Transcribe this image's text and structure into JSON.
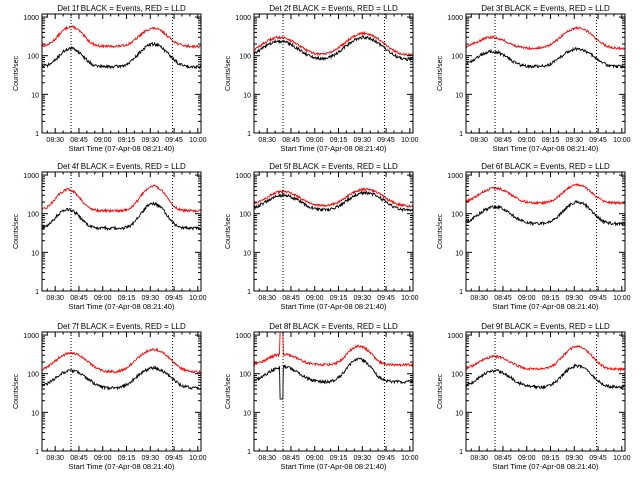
{
  "chart_data": {
    "type": "line",
    "grid": false,
    "ylabel": "Counts/sec",
    "xlabel": "Start Time (07-Apr-08 08:21:40)",
    "x_tick_labels": [
      "08:30",
      "08:45",
      "09:00",
      "09:15",
      "09:30",
      "09:45",
      "10:00"
    ],
    "x_tick_minutes": [
      30,
      45,
      60,
      75,
      90,
      105,
      120
    ],
    "x_range_minutes": [
      21.67,
      122
    ],
    "y_scale": "log",
    "y_range": [
      1,
      1200
    ],
    "y_tick_labels": [
      "1",
      "10",
      "100",
      "1000"
    ],
    "y_tick_values": [
      1,
      10,
      100,
      1000
    ],
    "vlines_minutes": [
      40,
      104
    ],
    "series_colors": {
      "events": "#000000",
      "lld": "#ff0000"
    },
    "panels": [
      {
        "title": "Det 1f BLACK = Events, RED = LLD",
        "lld": {
          "base": 175,
          "peaks": [
            [
              40,
              560,
              6
            ],
            [
              92,
              510,
              7
            ]
          ]
        },
        "events": {
          "base": 52,
          "peaks": [
            [
              40,
              155,
              6
            ],
            [
              92,
              200,
              7
            ]
          ]
        }
      },
      {
        "title": "Det 2f BLACK = Events, RED = LLD",
        "lld": {
          "base": 105,
          "peaks": [
            [
              38,
              300,
              9
            ],
            [
              91,
              380,
              9
            ]
          ]
        },
        "events": {
          "base": 80,
          "peaks": [
            [
              38,
              240,
              9
            ],
            [
              91,
              300,
              9
            ]
          ]
        }
      },
      {
        "title": "Det 3f BLACK = Events, RED = LLD",
        "lld": {
          "base": 155,
          "peaks": [
            [
              38,
              300,
              8
            ],
            [
              92,
              520,
              8
            ]
          ]
        },
        "events": {
          "base": 52,
          "peaks": [
            [
              38,
              130,
              8
            ],
            [
              92,
              150,
              8
            ]
          ]
        }
      },
      {
        "title": "Det 4f BLACK = Events, RED = LLD",
        "lld": {
          "base": 120,
          "peaks": [
            [
              38,
              420,
              6
            ],
            [
              92,
              520,
              6
            ]
          ]
        },
        "events": {
          "base": 42,
          "peaks": [
            [
              38,
              130,
              6
            ],
            [
              92,
              180,
              6
            ]
          ]
        }
      },
      {
        "title": "Det 5f BLACK = Events, RED = LLD",
        "lld": {
          "base": 155,
          "peaks": [
            [
              40,
              370,
              9
            ],
            [
              92,
              430,
              9
            ]
          ]
        },
        "events": {
          "base": 120,
          "peaks": [
            [
              40,
              300,
              9
            ],
            [
              92,
              350,
              9
            ]
          ]
        }
      },
      {
        "title": "Det 6f BLACK = Events, RED = LLD",
        "lld": {
          "base": 190,
          "peaks": [
            [
              40,
              460,
              8
            ],
            [
              92,
              560,
              7
            ]
          ]
        },
        "events": {
          "base": 55,
          "peaks": [
            [
              40,
              150,
              8
            ],
            [
              92,
              200,
              7
            ]
          ]
        }
      },
      {
        "title": "Det 7f BLACK = Events, RED = LLD",
        "lld": {
          "base": 110,
          "peaks": [
            [
              40,
              340,
              8
            ],
            [
              92,
              420,
              8
            ]
          ]
        },
        "events": {
          "base": 42,
          "peaks": [
            [
              40,
              120,
              8
            ],
            [
              92,
              140,
              8
            ]
          ]
        }
      },
      {
        "title": "Det 8f BLACK = Events, RED = LLD",
        "lld": {
          "base": 170,
          "peaks": [
            [
              40,
              320,
              8
            ],
            [
              88,
              520,
              6
            ]
          ]
        },
        "events": {
          "base": 62,
          "peaks": [
            [
              40,
              150,
              8
            ],
            [
              88,
              240,
              6
            ]
          ]
        },
        "spike": {
          "start": 38,
          "end": 40,
          "lld_max": 1200,
          "events_min": 22
        }
      },
      {
        "title": "Det 9f BLACK = Events, RED = LLD",
        "lld": {
          "base": 130,
          "peaks": [
            [
              40,
              280,
              8
            ],
            [
              92,
              500,
              7
            ]
          ]
        },
        "events": {
          "base": 45,
          "peaks": [
            [
              40,
              120,
              8
            ],
            [
              92,
              160,
              7
            ]
          ]
        }
      }
    ]
  }
}
